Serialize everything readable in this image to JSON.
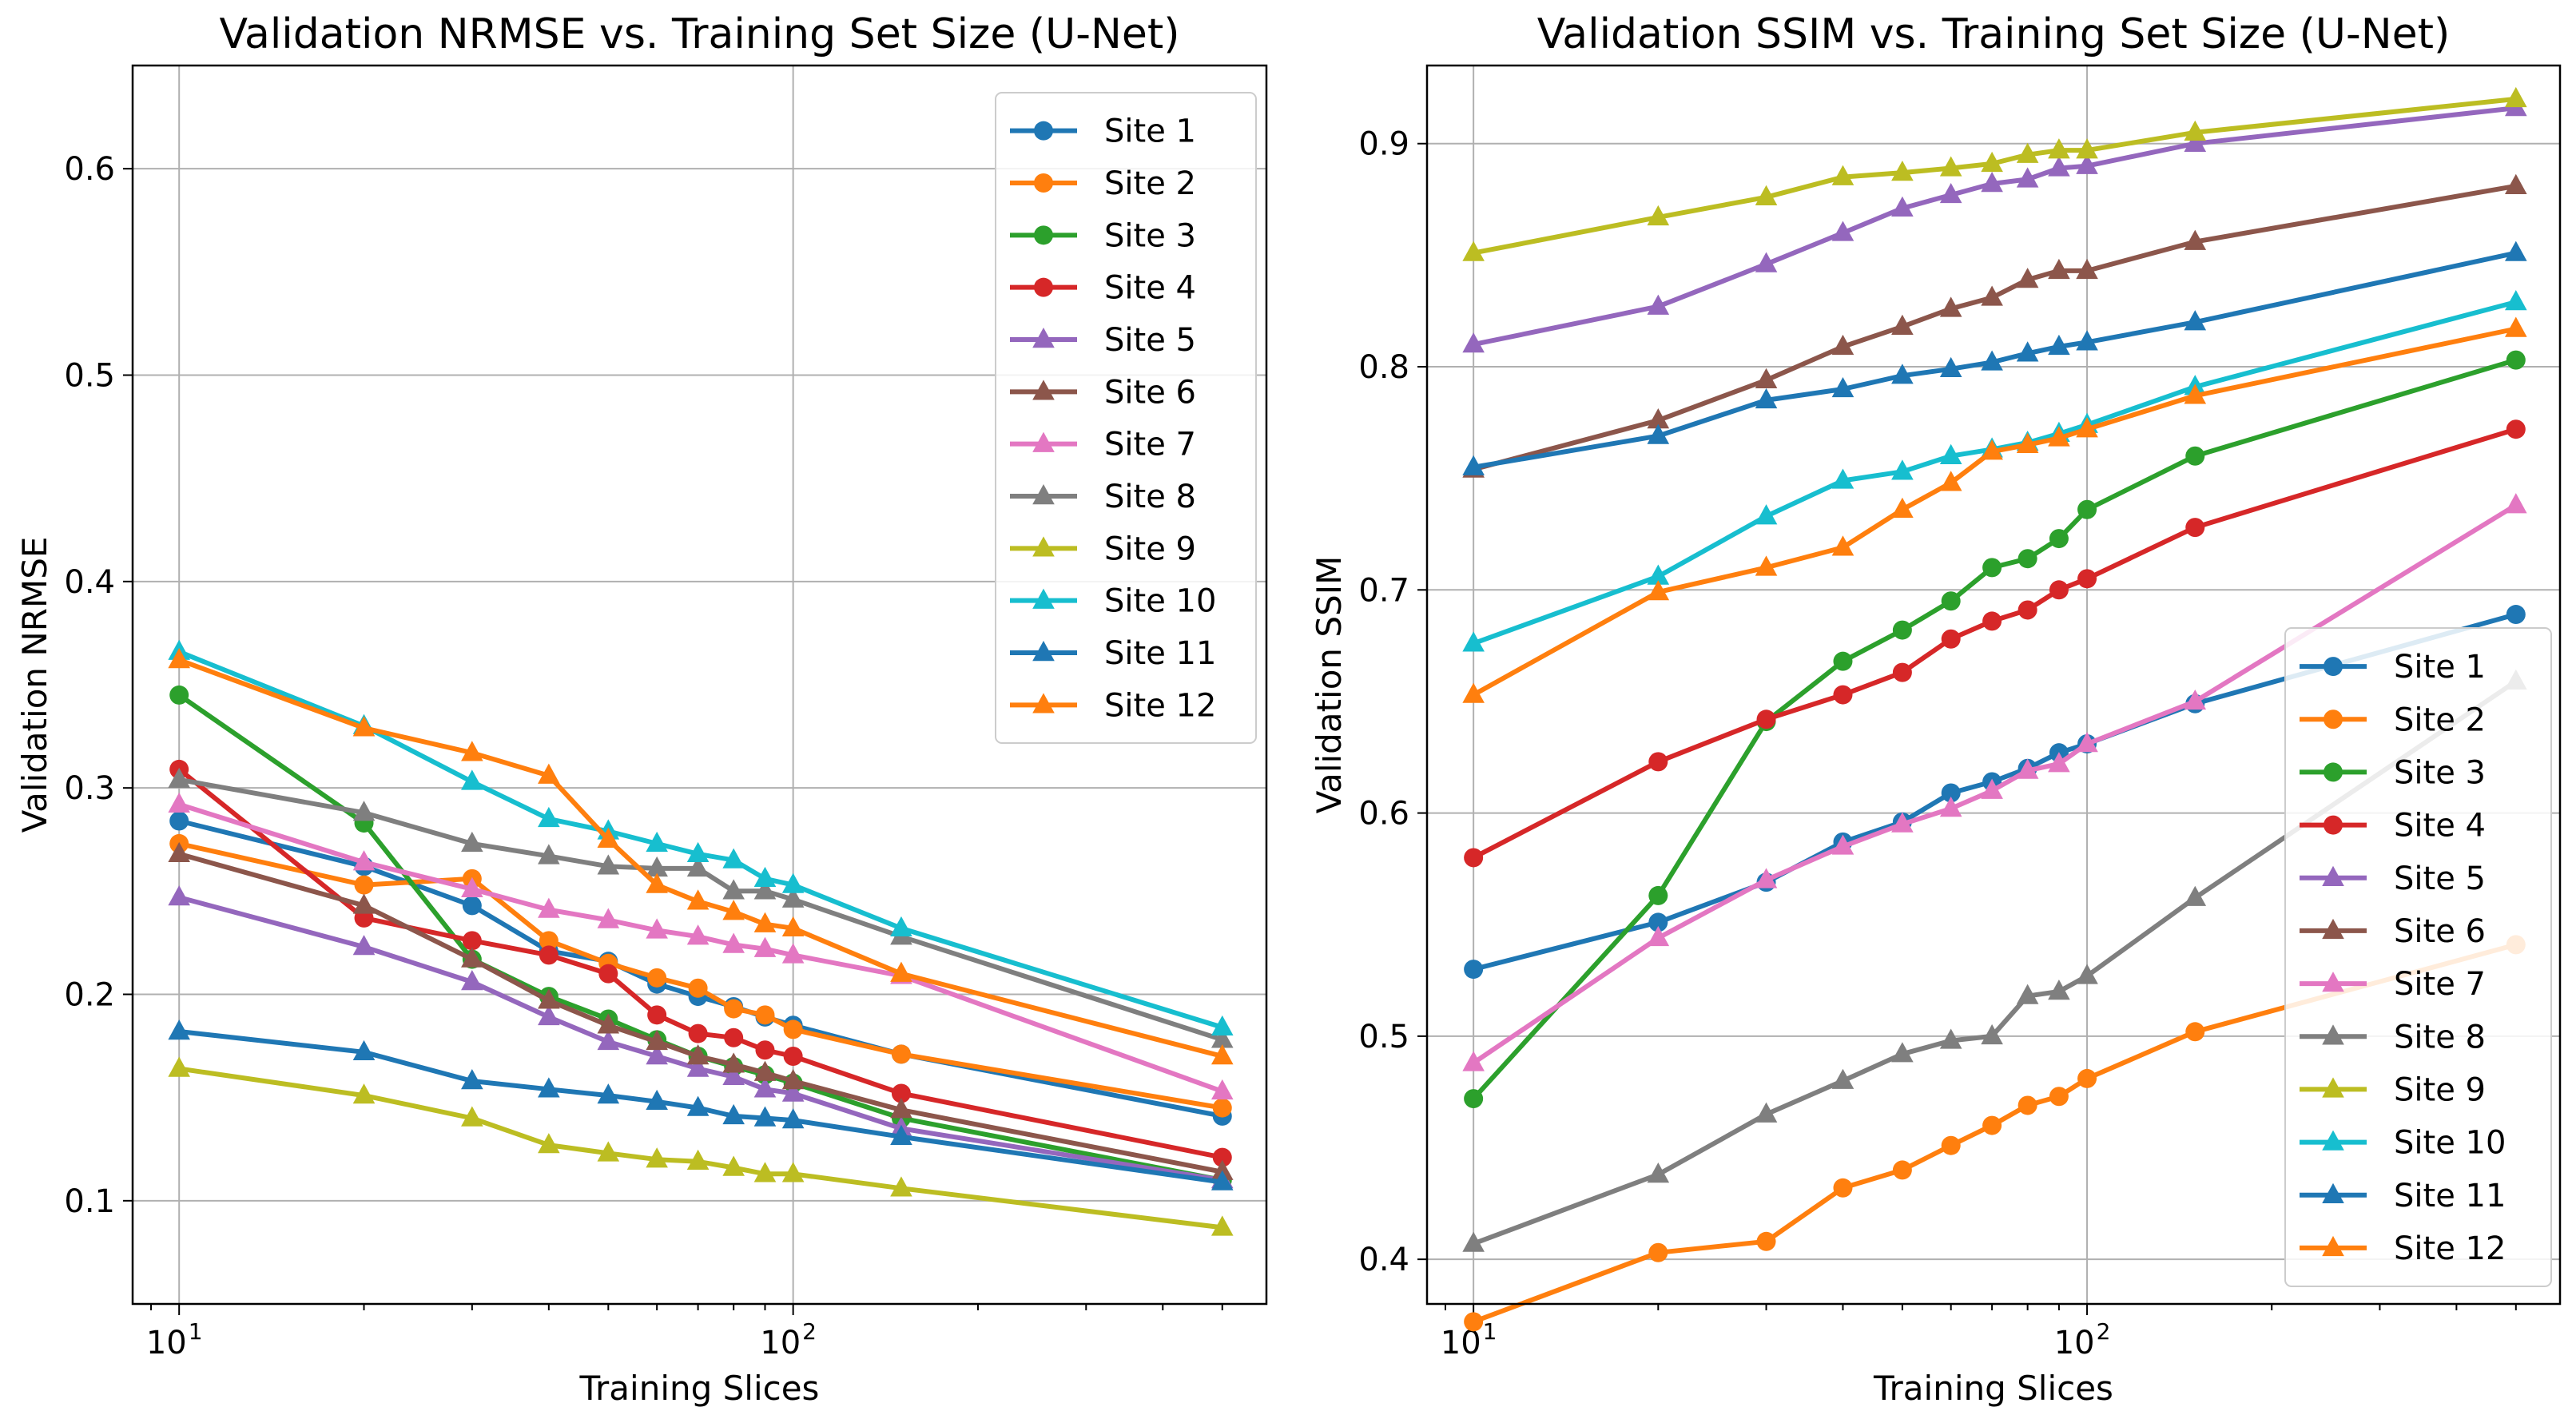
{
  "chart_data": [
    {
      "type": "line",
      "title": "Validation NRMSE vs. Training Set Size (U-Net)",
      "xlabel": "Training Slices",
      "ylabel": "Validation NRMSE",
      "xscale": "log",
      "xlim": [
        8.4,
        590
      ],
      "ylim": [
        0.05,
        0.65
      ],
      "yticks": [
        0.1,
        0.2,
        0.3,
        0.4,
        0.5,
        0.6
      ],
      "ytick_labels": [
        "0.1",
        "0.2",
        "0.3",
        "0.4",
        "0.5",
        "0.6"
      ],
      "xticks": [
        {
          "value": 10,
          "base": "10",
          "exp": "1"
        },
        {
          "value": 100,
          "base": "10",
          "exp": "2"
        }
      ],
      "grid": true,
      "legend_position": "top-right",
      "x": [
        10,
        20,
        30,
        40,
        50,
        60,
        70,
        80,
        90,
        100,
        150,
        500
      ],
      "series": [
        {
          "name": "Site 1",
          "color": "#1f77b4",
          "marker": "circle",
          "values": [
            0.284,
            0.262,
            0.243,
            0.221,
            0.216,
            0.205,
            0.199,
            0.194,
            0.189,
            0.185,
            0.171,
            0.141
          ]
        },
        {
          "name": "Site 2",
          "color": "#ff7f0e",
          "marker": "circle",
          "values": [
            0.273,
            0.253,
            0.256,
            0.226,
            0.215,
            0.208,
            0.203,
            0.193,
            0.19,
            0.183,
            0.171,
            0.145
          ]
        },
        {
          "name": "Site 3",
          "color": "#2ca02c",
          "marker": "circle",
          "values": [
            0.345,
            0.283,
            0.217,
            0.199,
            0.188,
            0.178,
            0.17,
            0.165,
            0.161,
            0.157,
            0.14,
            0.11
          ]
        },
        {
          "name": "Site 4",
          "color": "#d62728",
          "marker": "circle",
          "values": [
            0.309,
            0.237,
            0.226,
            0.219,
            0.21,
            0.19,
            0.181,
            0.179,
            0.173,
            0.17,
            0.152,
            0.121
          ]
        },
        {
          "name": "Site 5",
          "color": "#9467bd",
          "marker": "triangle",
          "values": [
            0.247,
            0.223,
            0.206,
            0.189,
            0.177,
            0.17,
            0.164,
            0.16,
            0.154,
            0.152,
            0.135,
            0.11
          ]
        },
        {
          "name": "Site 6",
          "color": "#8c564b",
          "marker": "triangle",
          "values": [
            0.268,
            0.243,
            0.217,
            0.197,
            0.185,
            0.177,
            0.17,
            0.166,
            0.162,
            0.158,
            0.144,
            0.114
          ]
        },
        {
          "name": "Site 7",
          "color": "#e377c2",
          "marker": "triangle",
          "values": [
            0.292,
            0.264,
            0.251,
            0.241,
            0.236,
            0.231,
            0.228,
            0.224,
            0.222,
            0.219,
            0.209,
            0.153
          ]
        },
        {
          "name": "Site 8",
          "color": "#7f7f7f",
          "marker": "triangle",
          "values": [
            0.304,
            0.288,
            0.273,
            0.267,
            0.262,
            0.261,
            0.261,
            0.25,
            0.25,
            0.246,
            0.228,
            0.178
          ]
        },
        {
          "name": "Site 9",
          "color": "#bcbd22",
          "marker": "triangle",
          "values": [
            0.164,
            0.151,
            0.14,
            0.127,
            0.123,
            0.12,
            0.119,
            0.116,
            0.113,
            0.113,
            0.106,
            0.087
          ]
        },
        {
          "name": "Site 10",
          "color": "#17becf",
          "marker": "triangle",
          "values": [
            0.366,
            0.33,
            0.303,
            0.285,
            0.279,
            0.273,
            0.268,
            0.265,
            0.256,
            0.253,
            0.232,
            0.184
          ]
        },
        {
          "name": "Site 11",
          "color": "#1f77b4",
          "marker": "triangle",
          "values": [
            0.182,
            0.172,
            0.158,
            0.154,
            0.151,
            0.148,
            0.145,
            0.141,
            0.14,
            0.139,
            0.131,
            0.109
          ]
        },
        {
          "name": "Site 12",
          "color": "#ff7f0e",
          "marker": "triangle",
          "values": [
            0.362,
            0.329,
            0.317,
            0.306,
            0.275,
            0.253,
            0.245,
            0.24,
            0.234,
            0.232,
            0.21,
            0.17
          ]
        }
      ]
    },
    {
      "type": "line",
      "title": "Validation SSIM vs. Training Set Size (U-Net)",
      "xlabel": "Training Slices",
      "ylabel": "Validation SSIM",
      "xscale": "log",
      "xlim": [
        8.4,
        590
      ],
      "ylim": [
        0.38,
        0.935
      ],
      "yticks": [
        0.4,
        0.5,
        0.6,
        0.7,
        0.8,
        0.9
      ],
      "ytick_labels": [
        "0.4",
        "0.5",
        "0.6",
        "0.7",
        "0.8",
        "0.9"
      ],
      "xticks": [
        {
          "value": 10,
          "base": "10",
          "exp": "1"
        },
        {
          "value": 100,
          "base": "10",
          "exp": "2"
        }
      ],
      "grid": true,
      "legend_position": "bottom-right",
      "x": [
        10,
        20,
        30,
        40,
        50,
        60,
        70,
        80,
        90,
        100,
        150,
        500
      ],
      "series": [
        {
          "name": "Site 1",
          "color": "#1f77b4",
          "marker": "circle",
          "values": [
            0.53,
            0.551,
            0.569,
            0.587,
            0.596,
            0.609,
            0.614,
            0.62,
            0.627,
            0.631,
            0.649,
            0.689
          ]
        },
        {
          "name": "Site 2",
          "color": "#ff7f0e",
          "marker": "circle",
          "values": [
            0.372,
            0.403,
            0.408,
            0.432,
            0.44,
            0.451,
            0.46,
            0.469,
            0.473,
            0.481,
            0.502,
            0.541
          ]
        },
        {
          "name": "Site 3",
          "color": "#2ca02c",
          "marker": "circle",
          "values": [
            0.472,
            0.563,
            0.641,
            0.668,
            0.682,
            0.695,
            0.71,
            0.714,
            0.723,
            0.736,
            0.76,
            0.803
          ]
        },
        {
          "name": "Site 4",
          "color": "#d62728",
          "marker": "circle",
          "values": [
            0.58,
            0.623,
            0.642,
            0.653,
            0.663,
            0.678,
            0.686,
            0.691,
            0.7,
            0.705,
            0.728,
            0.772
          ]
        },
        {
          "name": "Site 5",
          "color": "#9467bd",
          "marker": "triangle",
          "values": [
            0.81,
            0.827,
            0.846,
            0.86,
            0.871,
            0.877,
            0.882,
            0.884,
            0.889,
            0.89,
            0.9,
            0.916
          ]
        },
        {
          "name": "Site 6",
          "color": "#8c564b",
          "marker": "triangle",
          "values": [
            0.754,
            0.776,
            0.794,
            0.809,
            0.818,
            0.826,
            0.831,
            0.839,
            0.843,
            0.843,
            0.856,
            0.881
          ]
        },
        {
          "name": "Site 7",
          "color": "#e377c2",
          "marker": "triangle",
          "values": [
            0.488,
            0.544,
            0.57,
            0.585,
            0.595,
            0.602,
            0.61,
            0.619,
            0.622,
            0.631,
            0.65,
            0.738
          ]
        },
        {
          "name": "Site 8",
          "color": "#7f7f7f",
          "marker": "triangle",
          "values": [
            0.407,
            0.438,
            0.465,
            0.48,
            0.492,
            0.498,
            0.5,
            0.518,
            0.52,
            0.527,
            0.562,
            0.659
          ]
        },
        {
          "name": "Site 9",
          "color": "#bcbd22",
          "marker": "triangle",
          "values": [
            0.851,
            0.867,
            0.876,
            0.885,
            0.887,
            0.889,
            0.891,
            0.895,
            0.897,
            0.897,
            0.905,
            0.92
          ]
        },
        {
          "name": "Site 10",
          "color": "#17becf",
          "marker": "triangle",
          "values": [
            0.676,
            0.706,
            0.733,
            0.749,
            0.753,
            0.76,
            0.763,
            0.766,
            0.77,
            0.774,
            0.791,
            0.829
          ]
        },
        {
          "name": "Site 11",
          "color": "#1f77b4",
          "marker": "triangle",
          "values": [
            0.755,
            0.769,
            0.785,
            0.79,
            0.796,
            0.799,
            0.802,
            0.806,
            0.809,
            0.811,
            0.82,
            0.851
          ]
        },
        {
          "name": "Site 12",
          "color": "#ff7f0e",
          "marker": "triangle",
          "values": [
            0.653,
            0.699,
            0.71,
            0.719,
            0.736,
            0.748,
            0.762,
            0.765,
            0.768,
            0.772,
            0.787,
            0.817
          ]
        }
      ]
    }
  ]
}
